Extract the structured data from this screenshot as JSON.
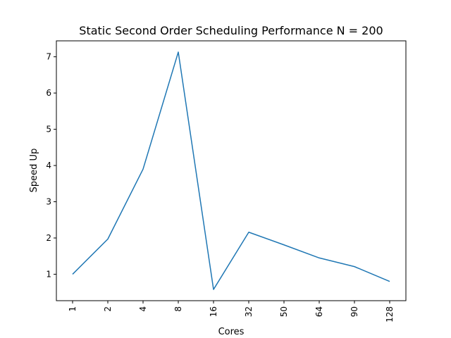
{
  "chart_data": {
    "type": "line",
    "title": "Static Second Order Scheduling Performance N = 200",
    "xlabel": "Cores",
    "ylabel": "Speed Up",
    "categories": [
      "1",
      "2",
      "4",
      "8",
      "16",
      "32",
      "50",
      "64",
      "90",
      "128"
    ],
    "series": [
      {
        "values": [
          1.0,
          1.97,
          3.9,
          7.13,
          0.58,
          2.16,
          1.81,
          1.45,
          1.21,
          0.8
        ],
        "color": "#1f77b4"
      }
    ],
    "ylim": [
      0.27,
      7.44
    ],
    "yticks": [
      1,
      2,
      3,
      4,
      5,
      6,
      7
    ],
    "grid": false,
    "x_tick_rotation": "vertical"
  }
}
